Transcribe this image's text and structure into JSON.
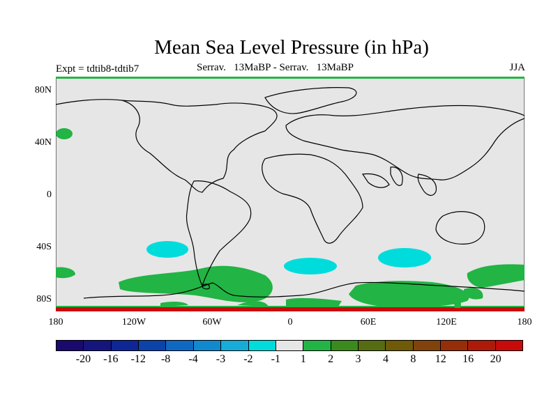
{
  "title": "Mean Sea Level Pressure (in hPa)",
  "subtitle_left": "Expt = tdtib8-tdtib7",
  "subtitle_center": "Serrav.   13MaBP - Serrav.   13MaBP",
  "subtitle_right": "JJA",
  "lat_labels": [
    "80N",
    "40N",
    "0",
    "40S",
    "80S"
  ],
  "lon_labels": [
    "180",
    "120W",
    "60W",
    "0",
    "60E",
    "120E",
    "180"
  ],
  "colorbar": {
    "colors": [
      "#1a0a6e",
      "#15157e",
      "#0f2696",
      "#0b43aa",
      "#0f68c2",
      "#1089ce",
      "#15acd8",
      "#00dcdc",
      "#e6e6e6",
      "#22b444",
      "#3a8a1e",
      "#556c10",
      "#6e5a08",
      "#82420c",
      "#962e0a",
      "#ae1a0a",
      "#c80a0a"
    ],
    "labels": [
      "-20",
      "-16",
      "-12",
      "-8",
      "-4",
      "-3",
      "-2",
      "-1",
      "1",
      "2",
      "3",
      "4",
      "8",
      "12",
      "16",
      "20"
    ]
  },
  "colors": {
    "land_ocean_bg": "#e6e6e6",
    "positive_anomaly": "#22b444",
    "negative_anomaly": "#00dcdc",
    "strong_positive": "#c80a0a"
  }
}
